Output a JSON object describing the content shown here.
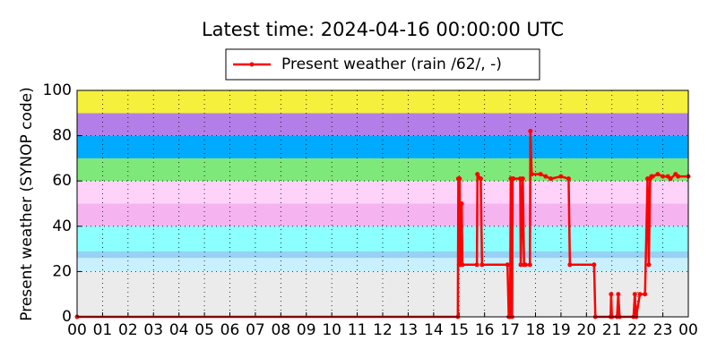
{
  "chart_data": {
    "type": "line",
    "title": "Latest time: 2024-04-16 00:00:00 UTC",
    "y_label": "Present weather (SYNOP code)",
    "xlim": [
      0,
      24
    ],
    "xticks": [
      {
        "value": 0,
        "label": "00"
      },
      {
        "value": 1,
        "label": "01"
      },
      {
        "value": 2,
        "label": "02"
      },
      {
        "value": 3,
        "label": "03"
      },
      {
        "value": 4,
        "label": "04"
      },
      {
        "value": 5,
        "label": "05"
      },
      {
        "value": 6,
        "label": "06"
      },
      {
        "value": 7,
        "label": "07"
      },
      {
        "value": 8,
        "label": "08"
      },
      {
        "value": 9,
        "label": "09"
      },
      {
        "value": 10,
        "label": "10"
      },
      {
        "value": 11,
        "label": "11"
      },
      {
        "value": 12,
        "label": "12"
      },
      {
        "value": 13,
        "label": "13"
      },
      {
        "value": 14,
        "label": "14"
      },
      {
        "value": 15,
        "label": "15"
      },
      {
        "value": 16,
        "label": "16"
      },
      {
        "value": 17,
        "label": "17"
      },
      {
        "value": 18,
        "label": "18"
      },
      {
        "value": 19,
        "label": "19"
      },
      {
        "value": 20,
        "label": "20"
      },
      {
        "value": 21,
        "label": "21"
      },
      {
        "value": 22,
        "label": "22"
      },
      {
        "value": 23,
        "label": "23"
      },
      {
        "value": 24,
        "label": "00"
      }
    ],
    "ylim": [
      0,
      100
    ],
    "yticks": [
      0,
      20,
      40,
      60,
      80,
      100
    ],
    "grid": true,
    "bands": [
      {
        "from": 0,
        "to": 20,
        "color": "#ebebeb"
      },
      {
        "from": 20,
        "to": 26,
        "color": "#c8f0ff"
      },
      {
        "from": 26,
        "to": 29,
        "color": "#96d2f5"
      },
      {
        "from": 29,
        "to": 40,
        "color": "#8cffff"
      },
      {
        "from": 40,
        "to": 50,
        "color": "#f5b4f0"
      },
      {
        "from": 50,
        "to": 60,
        "color": "#ffd2fa"
      },
      {
        "from": 60,
        "to": 70,
        "color": "#7ee87a"
      },
      {
        "from": 70,
        "to": 80,
        "color": "#00aaff"
      },
      {
        "from": 80,
        "to": 90,
        "color": "#b47ee8"
      },
      {
        "from": 90,
        "to": 100,
        "color": "#f5f03c"
      }
    ],
    "x": [
      0,
      14.95,
      14.97,
      15.0,
      15.02,
      15.05,
      15.1,
      15.13,
      15.7,
      15.72,
      15.85,
      15.9,
      16.9,
      16.95,
      17.0,
      17.03,
      17.08,
      17.1,
      17.13,
      17.4,
      17.42,
      17.5,
      17.55,
      17.6,
      17.78,
      17.8,
      17.85,
      18.2,
      18.4,
      18.6,
      19.0,
      19.3,
      19.35,
      20.3,
      20.35,
      20.95,
      20.97,
      21.0,
      21.2,
      21.25,
      21.3,
      21.85,
      21.9,
      21.95,
      22.1,
      22.3,
      22.4,
      22.45,
      22.5,
      22.55,
      22.6,
      22.8,
      23.0,
      23.2,
      23.3,
      23.5,
      23.6,
      24
    ],
    "series": [
      {
        "name": "Present weather (rain /62/, -)",
        "color": "#ff0000",
        "values": [
          0,
          0,
          61,
          23,
          61,
          23,
          50,
          23,
          23,
          63,
          61,
          23,
          23,
          0,
          0,
          61,
          0,
          61,
          61,
          61,
          23,
          61,
          23,
          23,
          23,
          82,
          63,
          63,
          62,
          61,
          62,
          61,
          23,
          23,
          0,
          0,
          10,
          0,
          0,
          10,
          0,
          0,
          10,
          0,
          10,
          10,
          61,
          23,
          61,
          62,
          62,
          63,
          62,
          62,
          61,
          63,
          62,
          62
        ]
      }
    ]
  }
}
